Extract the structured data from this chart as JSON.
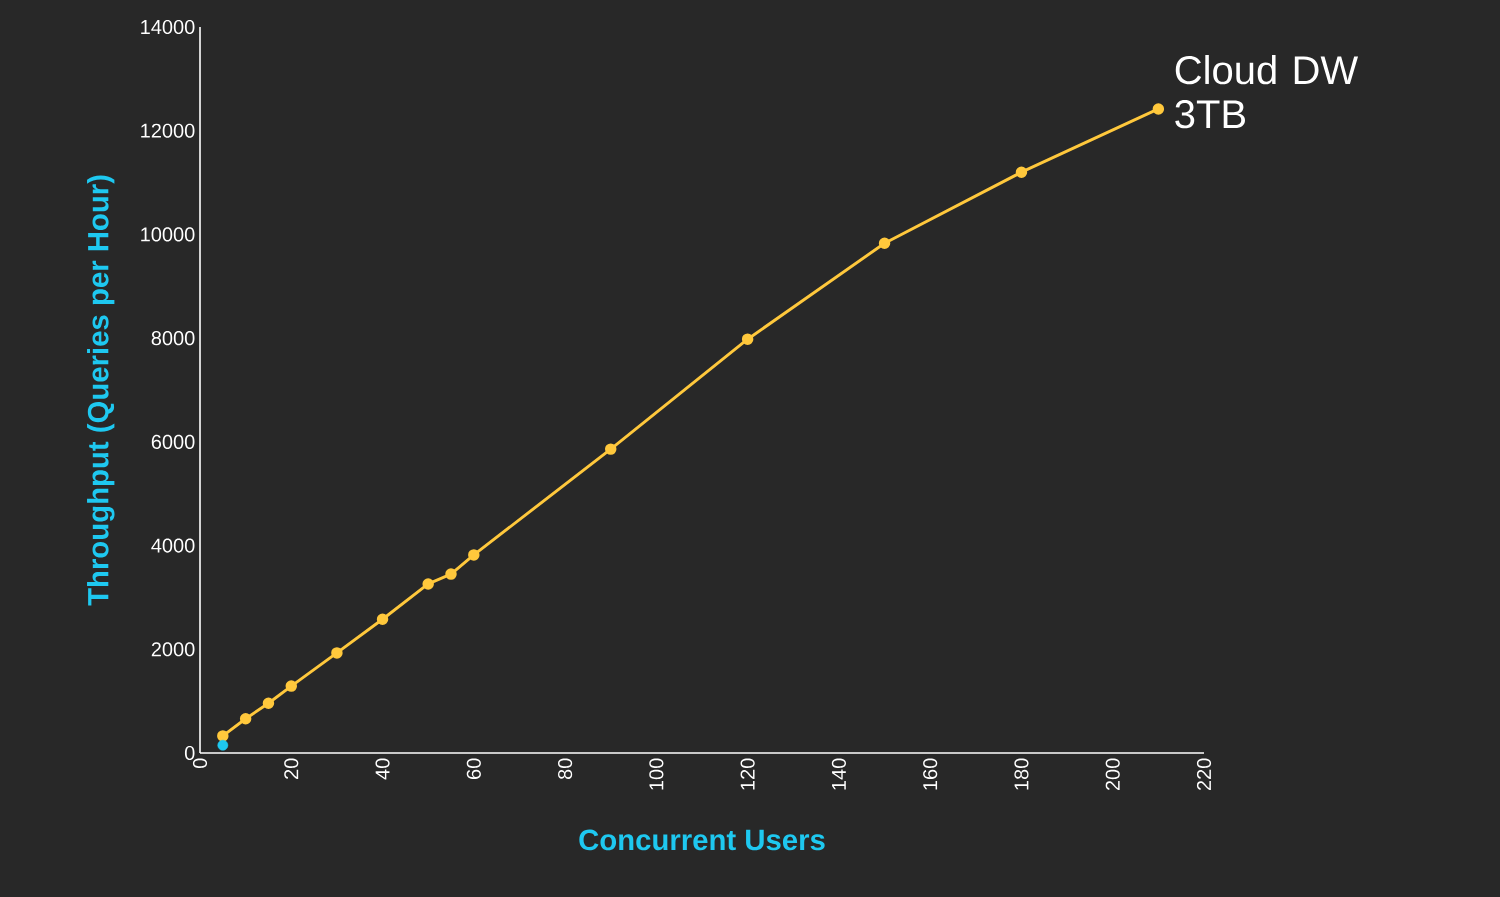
{
  "chart_data": {
    "type": "line",
    "xlabel": "Concurrent Users",
    "ylabel": "Throughput (Queries per Hour)",
    "xlim": [
      0,
      220
    ],
    "ylim": [
      0,
      14000
    ],
    "xticks": [
      0,
      20,
      40,
      60,
      80,
      100,
      120,
      140,
      160,
      180,
      200,
      220
    ],
    "yticks": [
      0,
      2000,
      4000,
      6000,
      8000,
      10000,
      12000,
      14000
    ],
    "marker": "circle",
    "series": [
      {
        "name": "Cloud DW 3TB",
        "color": "#ffc83c",
        "x": [
          5,
          10,
          15,
          20,
          30,
          40,
          50,
          55,
          60,
          90,
          120,
          150,
          180,
          210
        ],
        "values": [
          330,
          660,
          960,
          1290,
          1930,
          2580,
          3260,
          3450,
          3820,
          5860,
          7980,
          9830,
          11200,
          12420
        ]
      },
      {
        "type": "scatter",
        "color": "#1ec8f0",
        "x": [
          5
        ],
        "values": [
          150
        ]
      }
    ]
  }
}
